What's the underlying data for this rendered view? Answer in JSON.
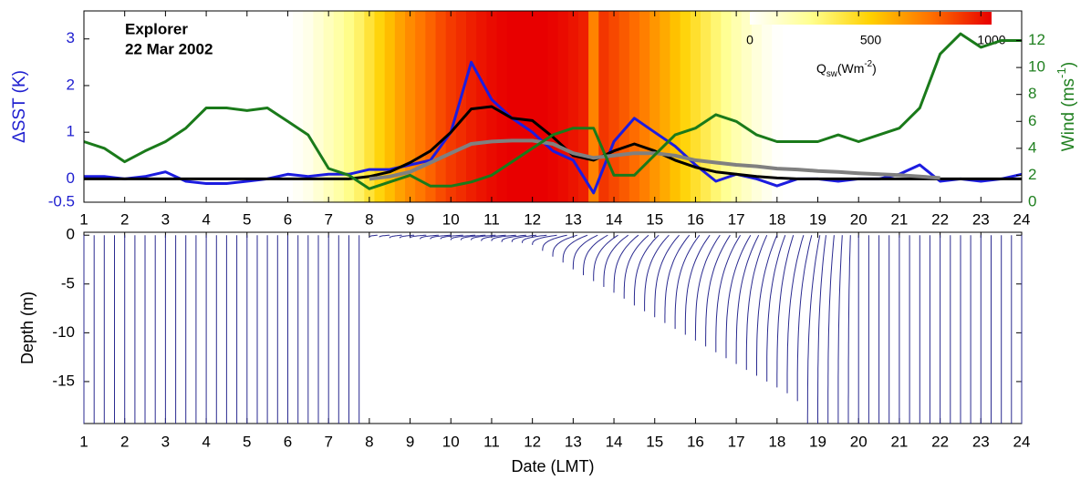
{
  "chart_data": [
    {
      "type": "line",
      "annotations": [
        "Explorer",
        "22 Mar 2002"
      ],
      "ylabel": "ΔSST (K)",
      "y2label": {
        "text": "Wind (ms",
        "sup": "-1",
        "end": ")"
      },
      "xlim": [
        1,
        24
      ],
      "xticks": [
        1,
        2,
        3,
        4,
        5,
        6,
        7,
        8,
        9,
        10,
        11,
        12,
        13,
        14,
        15,
        16,
        17,
        18,
        19,
        20,
        21,
        22,
        23,
        24
      ],
      "ylim": [
        -0.5,
        3.6
      ],
      "yticks": [
        -0.5,
        0,
        1,
        2,
        3
      ],
      "y2lim": [
        0,
        14.2
      ],
      "y2ticks": [
        0,
        2,
        4,
        6,
        8,
        10,
        12
      ],
      "x": [
        1,
        1.5,
        2,
        2.5,
        3,
        3.5,
        4,
        4.5,
        5,
        5.5,
        6,
        6.5,
        7,
        7.5,
        8,
        8.5,
        9,
        9.5,
        10,
        10.5,
        11,
        11.5,
        12,
        12.5,
        13,
        13.5,
        14,
        14.5,
        15,
        15.5,
        16,
        16.5,
        17,
        17.5,
        18,
        18.5,
        19,
        19.5,
        20,
        20.5,
        21,
        21.5,
        22,
        22.5,
        23,
        23.5,
        24
      ],
      "series": [
        {
          "color": "#1c1ce0",
          "values": [
            0.05,
            0.05,
            0,
            0.05,
            0.15,
            -0.05,
            -0.1,
            -0.1,
            -0.05,
            0,
            0.1,
            0.05,
            0.1,
            0.1,
            0.2,
            0.2,
            0.3,
            0.4,
            1.0,
            2.5,
            1.7,
            1.3,
            1.0,
            0.6,
            0.4,
            -0.3,
            0.8,
            1.3,
            1.0,
            0.7,
            0.3,
            -0.05,
            0.1,
            0,
            -0.15,
            0,
            0,
            -0.05,
            0,
            0,
            0.1,
            0.3,
            -0.05,
            0,
            -0.05,
            0,
            0.1
          ]
        },
        {
          "color": "#000000",
          "values": [
            0,
            0,
            0,
            0,
            0,
            0,
            0,
            0,
            0,
            0,
            0,
            0,
            0,
            0,
            0.05,
            0.15,
            0.35,
            0.6,
            1.0,
            1.5,
            1.55,
            1.3,
            1.25,
            0.9,
            0.5,
            0.4,
            0.6,
            0.75,
            0.6,
            0.4,
            0.25,
            0.15,
            0.1,
            0.05,
            0.02,
            0,
            0,
            0,
            0,
            0,
            0,
            0,
            0,
            0,
            0,
            0,
            0
          ]
        },
        {
          "color": "#808080",
          "values": [
            null,
            null,
            null,
            null,
            null,
            null,
            null,
            null,
            null,
            null,
            null,
            null,
            null,
            null,
            0,
            0.05,
            0.15,
            0.35,
            0.55,
            0.75,
            0.8,
            0.82,
            0.82,
            0.75,
            0.55,
            0.45,
            0.5,
            0.55,
            0.55,
            0.5,
            0.4,
            0.35,
            0.3,
            0.27,
            0.22,
            0.2,
            0.17,
            0.15,
            0.12,
            0.1,
            0.08,
            0.05,
            0.02,
            null,
            null,
            null,
            null
          ]
        },
        {
          "color": "#1a7a1a",
          "axis": "y2",
          "values": [
            4.5,
            4,
            3,
            3.8,
            4.5,
            5.5,
            7,
            7,
            6.8,
            7,
            6,
            5,
            2.5,
            2,
            1,
            1.5,
            2,
            1.2,
            1.2,
            1.5,
            2,
            3,
            4,
            5,
            5.5,
            5.5,
            2,
            2,
            3.5,
            5,
            5.5,
            6.5,
            6,
            5,
            4.5,
            4.5,
            4.5,
            5,
            4.5,
            5,
            5.5,
            7,
            11,
            12.5,
            11.5,
            12,
            12
          ]
        }
      ],
      "heatmap": {
        "x": [
          6.25,
          6.5,
          6.75,
          7,
          7.25,
          7.5,
          7.75,
          8,
          8.25,
          8.5,
          8.75,
          9,
          9.25,
          9.5,
          9.75,
          10,
          10.25,
          10.5,
          10.75,
          11,
          11.25,
          11.5,
          11.75,
          12,
          12.25,
          12.5,
          12.75,
          13,
          13.25,
          13.5,
          13.75,
          14,
          14.25,
          14.5,
          14.75,
          15,
          15.25,
          15.5,
          15.75,
          16,
          16.25,
          16.5,
          16.75,
          17,
          17.25,
          17.5,
          17.75,
          18
        ],
        "values": [
          20,
          50,
          100,
          150,
          200,
          260,
          320,
          400,
          480,
          550,
          620,
          680,
          730,
          780,
          830,
          870,
          900,
          930,
          955,
          975,
          990,
          1000,
          1000,
          1000,
          1000,
          990,
          975,
          955,
          930,
          700,
          880,
          840,
          800,
          760,
          710,
          650,
          600,
          540,
          480,
          420,
          360,
          300,
          240,
          180,
          130,
          80,
          40,
          10
        ],
        "colormap": [
          "#ffffff",
          "#ffff90",
          "#ffd000",
          "#ff7000",
          "#e80000"
        ],
        "lim": [
          0,
          1000
        ],
        "ticks": [
          0,
          500,
          1000
        ],
        "label": {
          "text": "Q",
          "sub": "sw",
          "mid": "(Wm",
          "sup": "-2",
          "end": ")"
        }
      }
    },
    {
      "type": "profiles",
      "xlabel": "Date (LMT)",
      "ylabel": "Depth (m)",
      "xlim": [
        1,
        24
      ],
      "xticks": [
        1,
        2,
        3,
        4,
        5,
        6,
        7,
        8,
        9,
        10,
        11,
        12,
        13,
        14,
        15,
        16,
        17,
        18,
        19,
        20,
        21,
        22,
        23,
        24
      ],
      "ylim": [
        -19.3,
        0.3
      ],
      "yticks": [
        0,
        -5,
        -10,
        -15
      ],
      "color": "#2a2a90",
      "t": [
        1,
        1.25,
        1.5,
        1.75,
        2,
        2.25,
        2.5,
        2.75,
        3,
        3.25,
        3.5,
        3.75,
        4,
        4.25,
        4.5,
        4.75,
        5,
        5.25,
        5.5,
        5.75,
        6,
        6.25,
        6.5,
        6.75,
        7,
        7.25,
        7.5,
        7.75,
        8,
        8.25,
        8.5,
        8.75,
        9,
        9.25,
        9.5,
        9.75,
        10,
        10.25,
        10.5,
        10.75,
        11,
        11.25,
        11.5,
        11.75,
        12,
        12.25,
        12.5,
        12.75,
        13,
        13.25,
        13.5,
        13.75,
        14,
        14.25,
        14.5,
        14.75,
        15,
        15.25,
        15.5,
        15.75,
        16,
        16.25,
        16.5,
        16.75,
        17,
        17.25,
        17.5,
        17.75,
        18,
        18.25,
        18.5,
        18.75,
        19,
        19.25,
        19.5,
        19.75,
        20,
        20.25,
        20.5,
        20.75,
        21,
        21.25,
        21.5,
        21.75,
        22,
        22.25,
        22.5,
        22.75,
        23,
        23.25,
        23.5,
        23.75,
        24
      ],
      "bottom": [
        -19.3,
        -19.3,
        -19.3,
        -19.3,
        -19.3,
        -19.3,
        -19.3,
        -19.3,
        -19.3,
        -19.3,
        -19.3,
        -19.3,
        -19.3,
        -19.3,
        -19.3,
        -19.3,
        -19.3,
        -19.3,
        -19.3,
        -19.3,
        -19.3,
        -19.3,
        -19.3,
        -19.3,
        -19.3,
        -19.3,
        -19.3,
        -19.3,
        -0.2,
        -0.2,
        -0.3,
        -0.3,
        -0.3,
        -0.4,
        -0.4,
        -0.4,
        -0.5,
        -0.5,
        -0.5,
        -0.6,
        -0.6,
        -0.7,
        -0.7,
        -0.8,
        -1,
        -1.6,
        -2.2,
        -2.8,
        -3.5,
        -4.1,
        -4.7,
        -5.3,
        -5.9,
        -6.5,
        -7.2,
        -7.8,
        -8.4,
        -9,
        -9.6,
        -10.2,
        -10.8,
        -11.4,
        -12,
        -12.6,
        -13.2,
        -13.8,
        -14.4,
        -15,
        -15.6,
        -16.2,
        -17,
        -19.3,
        -19.3,
        -19.3,
        -19.3,
        -19.3,
        -19.3,
        -19.3,
        -19.3,
        -19.3,
        -19.3,
        -19.3,
        -19.3,
        -19.3,
        -19.3,
        -19.3,
        -19.3,
        -19.3,
        -19.3,
        -19.3,
        -19.3,
        -19.3,
        -19.3
      ],
      "shift": [
        0,
        0,
        0,
        0,
        0,
        0,
        0,
        0,
        0,
        0,
        0,
        0,
        0,
        0,
        0,
        0,
        0,
        0,
        0,
        0,
        0,
        0,
        0,
        0,
        0,
        0,
        0,
        0,
        0.2,
        0.25,
        0.3,
        0.35,
        0.4,
        0.45,
        0.5,
        0.55,
        0.6,
        0.6,
        0.6,
        0.6,
        0.6,
        0.6,
        0.6,
        0.6,
        0.6,
        0.6,
        0.6,
        0.6,
        0.6,
        0.6,
        0.6,
        0.6,
        0.6,
        0.6,
        0.6,
        0.6,
        0.6,
        0.6,
        0.6,
        0.6,
        0.6,
        0.6,
        0.6,
        0.6,
        0.55,
        0.5,
        0.5,
        0.45,
        0.4,
        0.4,
        0.35,
        0.3,
        0.2,
        0.15,
        0.1,
        0.05,
        0,
        0,
        0,
        0,
        0,
        0,
        0,
        0,
        0,
        0,
        0,
        0,
        0,
        0,
        0,
        0,
        0
      ]
    }
  ]
}
